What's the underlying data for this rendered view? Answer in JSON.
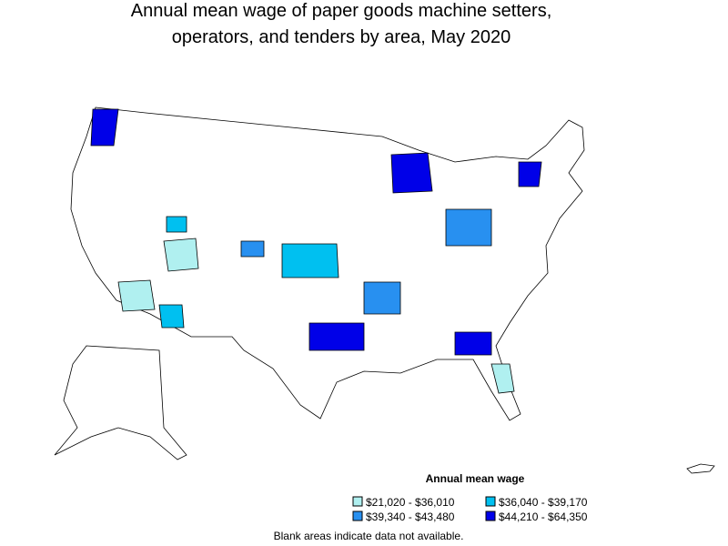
{
  "title": [
    "Annual mean wage of paper goods machine setters,",
    "operators, and tenders by area, May 2020"
  ],
  "legend": {
    "title": "Annual mean wage",
    "entries": [
      {
        "label": "$21,020 - $36,010",
        "color": "#b0f0f0"
      },
      {
        "label": "$36,040 - $39,170",
        "color": "#00c0f0"
      },
      {
        "label": "$39,340 - $43,480",
        "color": "#2890f0"
      },
      {
        "label": "$44,210 - $64,350",
        "color": "#0000e8"
      }
    ]
  },
  "note": "Blank areas indicate data not available."
}
